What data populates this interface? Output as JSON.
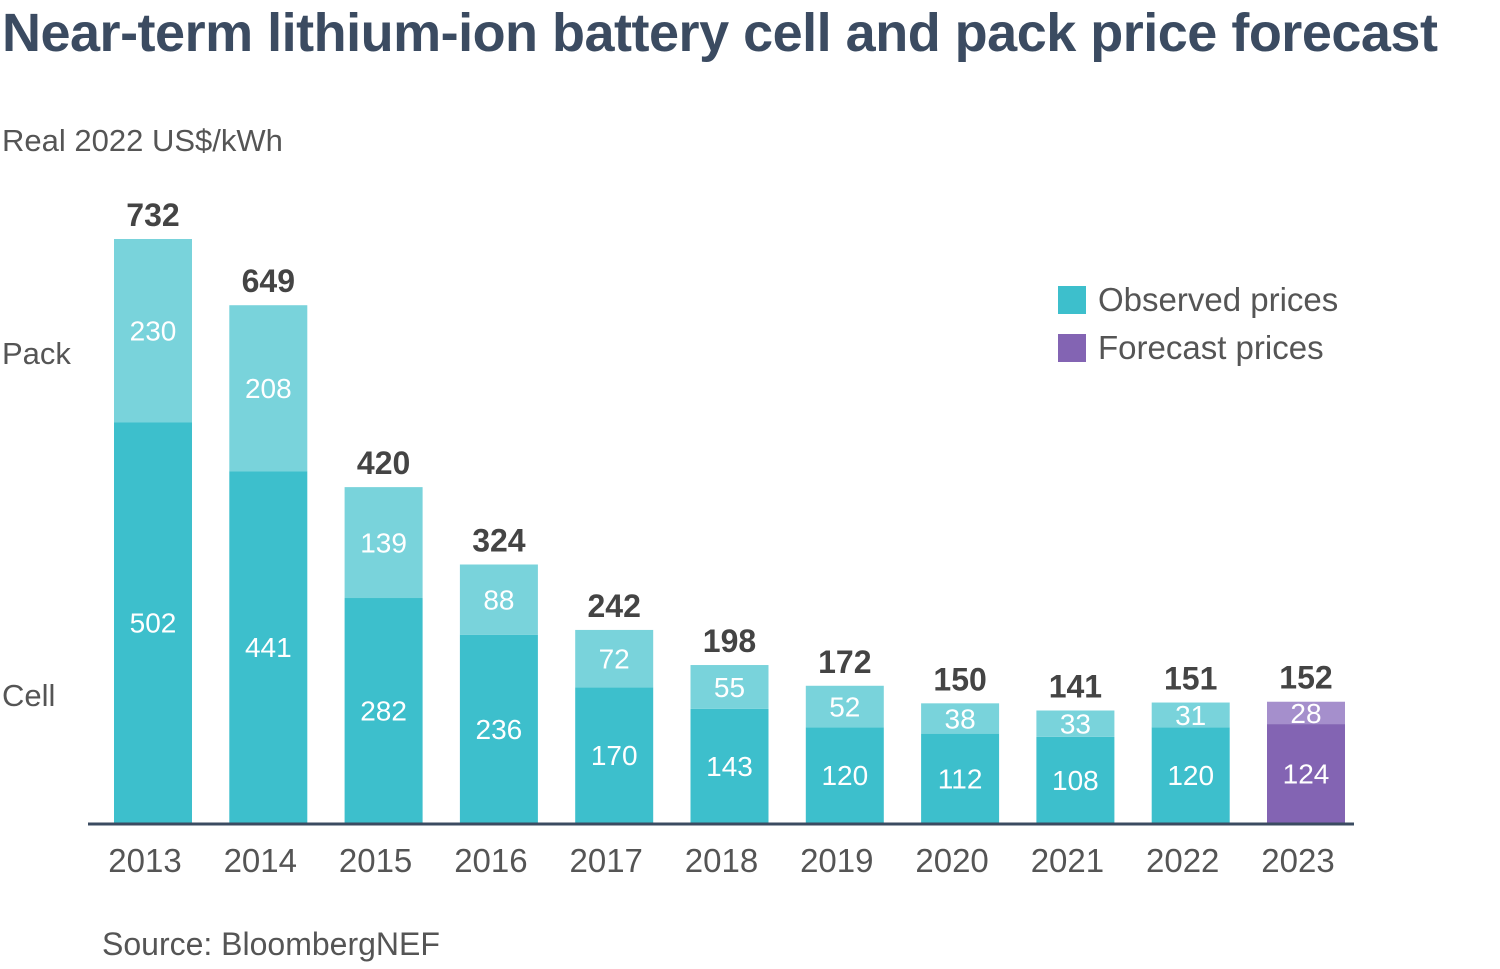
{
  "title": "Near-term lithium-ion battery cell and pack price forecast",
  "unit_label": "Real 2022 US$/kWh",
  "side_labels": {
    "pack": "Pack",
    "cell": "Cell"
  },
  "legend": [
    {
      "label": "Observed prices",
      "color": "#3dbfcc"
    },
    {
      "label": "Forecast prices",
      "color": "#8364b3"
    }
  ],
  "source": "Source: BloombergNEF",
  "colors": {
    "observed_cell": "#3dbfcc",
    "observed_pack": "#79d3db",
    "forecast_cell": "#8364b3",
    "forecast_pack": "#a58fcc",
    "axis": "#3b4b61",
    "total_label": "#444444",
    "inner_label": "#ffffff",
    "tick_label": "#555555"
  },
  "chart_data": {
    "type": "bar",
    "stacked": true,
    "title": "Near-term lithium-ion battery cell and pack price forecast",
    "ylabel": "Real 2022 US$/kWh",
    "xlabel": "",
    "ylim": [
      0,
      740
    ],
    "grid": false,
    "legend_position": "top-right",
    "categories": [
      "2013",
      "2014",
      "2015",
      "2016",
      "2017",
      "2018",
      "2019",
      "2020",
      "2021",
      "2022",
      "2023"
    ],
    "series": [
      {
        "name": "Cell",
        "values": [
          502,
          441,
          282,
          236,
          170,
          143,
          120,
          112,
          108,
          120,
          124
        ]
      },
      {
        "name": "Pack",
        "values": [
          230,
          208,
          139,
          88,
          72,
          55,
          52,
          38,
          33,
          31,
          28
        ]
      }
    ],
    "totals": [
      732,
      649,
      420,
      324,
      242,
      198,
      172,
      150,
      141,
      151,
      152
    ],
    "status": [
      "observed",
      "observed",
      "observed",
      "observed",
      "observed",
      "observed",
      "observed",
      "observed",
      "observed",
      "observed",
      "forecast"
    ]
  }
}
